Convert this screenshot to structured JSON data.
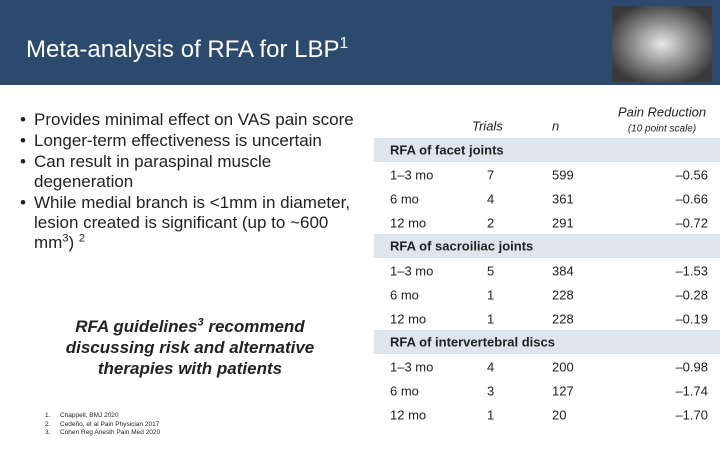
{
  "header": {
    "title": [
      {
        "text": "Meta-analysis of RFA for LBP"
      },
      {
        "sup": "1"
      }
    ]
  },
  "bullets": [
    [
      {
        "text": "Provides minimal effect on VAS pain score"
      }
    ],
    [
      {
        "text": "Longer-term effectiveness is uncertain"
      }
    ],
    [
      {
        "text": "Can result in paraspinal muscle degeneration"
      }
    ],
    [
      {
        "text": "While medial branch is <1mm in diameter, lesion created is significant (up to ~600 mm"
      },
      {
        "sup": "3"
      },
      {
        "text": ") "
      },
      {
        "sup": "2"
      }
    ]
  ],
  "guideline": [
    {
      "text": "RFA guidelines"
    },
    {
      "sup": "3"
    },
    {
      "text": " recommend discussing risk and alternative therapies with patients"
    }
  ],
  "references": [
    {
      "num": "1.",
      "text": "Chappell, BMJ 2020"
    },
    {
      "num": "2.",
      "text": "Cedeño, et al Pain Physician 2017"
    },
    {
      "num": "3.",
      "text": "Cohen Reg Anesth Pain Med 2020"
    }
  ],
  "table": {
    "columns": {
      "trials": "Trials",
      "n": "n",
      "reduction": "Pain Reduction",
      "scale": "(10 point scale)"
    },
    "sections": [
      {
        "name": "RFA of facet joints",
        "rows": [
          [
            "1–3 mo",
            "7",
            "599",
            "–0.56"
          ],
          [
            "6 mo",
            "4",
            "361",
            "–0.66"
          ],
          [
            "12 mo",
            "2",
            "291",
            "–0.72"
          ]
        ]
      },
      {
        "name": "RFA of sacroiliac joints",
        "rows": [
          [
            "1–3 mo",
            "5",
            "384",
            "–1.53"
          ],
          [
            "6 mo",
            "1",
            "228",
            "–0.28"
          ],
          [
            "12 mo",
            "1",
            "228",
            "–0.19"
          ]
        ]
      },
      {
        "name": "RFA of intervertebral  discs",
        "rows": [
          [
            "1–3 mo",
            "4",
            "200",
            "–0.98"
          ],
          [
            "6 mo",
            "3",
            "127",
            "–1.74"
          ],
          [
            "12 mo",
            "1",
            "20",
            "–1.70"
          ]
        ]
      }
    ]
  }
}
